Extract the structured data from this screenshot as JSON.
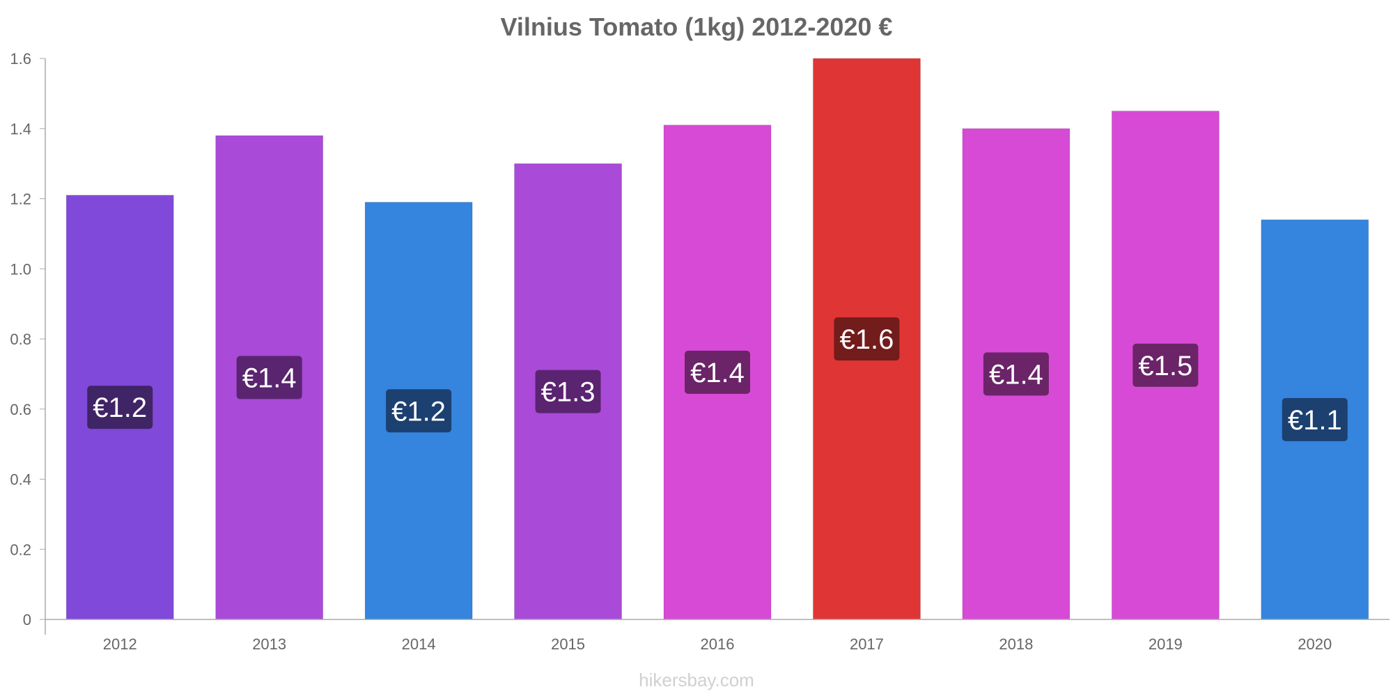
{
  "chart_data": {
    "type": "bar",
    "title": "Vilnius Tomato (1kg) 2012-2020 €",
    "xlabel": "",
    "ylabel": "",
    "categories": [
      "2012",
      "2013",
      "2014",
      "2015",
      "2016",
      "2017",
      "2018",
      "2019",
      "2020"
    ],
    "values": [
      1.21,
      1.38,
      1.19,
      1.3,
      1.41,
      1.6,
      1.4,
      1.45,
      1.14
    ],
    "value_labels": [
      "€1.2",
      "€1.4",
      "€1.2",
      "€1.3",
      "€1.4",
      "€1.6",
      "€1.4",
      "€1.5",
      "€1.1"
    ],
    "ylim": [
      0,
      1.6
    ],
    "yticks": [
      "0",
      "0.2",
      "0.4",
      "0.6",
      "0.8",
      "1.0",
      "1.2",
      "1.4",
      "1.6"
    ],
    "grid": false,
    "legend": "none",
    "bar_colors": [
      "#8049d9",
      "#a94ad9",
      "#3584de",
      "#a94ad9",
      "#d74ad6",
      "#e03535",
      "#d74ad6",
      "#d74ad6",
      "#3584de"
    ],
    "label_bg_colors": [
      "#3f2466",
      "#5a2470",
      "#1c4070",
      "#5a2470",
      "#6b2468",
      "#721c1c",
      "#6b2468",
      "#6b2468",
      "#1c4070"
    ]
  },
  "watermark": "hikersbay.com"
}
